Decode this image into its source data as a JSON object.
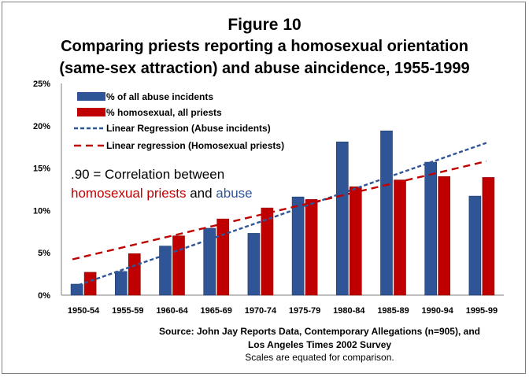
{
  "chart_data": {
    "type": "bar",
    "title": "Figure 10",
    "subtitle_line1": "Comparing priests reporting a homosexual orientation",
    "subtitle_line2": "(same-sex attraction) and abuse aincidence, 1955-1999",
    "categories": [
      "1950-54",
      "1955-59",
      "1960-64",
      "1965-69",
      "1970-74",
      "1975-79",
      "1980-84",
      "1985-89",
      "1990-94",
      "1995-99"
    ],
    "y_ticks": [
      "0%",
      "5%",
      "10%",
      "15%",
      "20%",
      "25%"
    ],
    "ylim": [
      0,
      25
    ],
    "grid": false,
    "legend_placement": "top-left",
    "series": [
      {
        "name": "% of all abuse incidents",
        "color": "#2f5597",
        "values": [
          1.3,
          2.8,
          5.8,
          7.9,
          7.3,
          11.6,
          18.1,
          19.4,
          15.7,
          11.7
        ]
      },
      {
        "name": "% homosexual, all priests",
        "color": "#c00000",
        "values": [
          2.7,
          4.9,
          7.0,
          9.0,
          10.3,
          11.3,
          12.8,
          13.6,
          14.0,
          13.9
        ]
      }
    ],
    "regressions": [
      {
        "name": "Linear Regression (Abuse incidents)",
        "color": "#2f5597",
        "start": 0.94,
        "end": 17.98
      },
      {
        "name": "Linear regression (Homosexual priests)",
        "color": "#c00000",
        "start": 4.23,
        "end": 15.81
      }
    ],
    "annotation": {
      "line1_value": ".90",
      "line1_text": " = Correlation between",
      "line2_red": "homosexual priests",
      "line2_mid": " and ",
      "line2_blue": "abuse"
    },
    "source_line1": "Source: John Jay Reports Data, Contemporary Allegations (n=905), and",
    "source_line2": "Los Angeles Times 2002 Survey",
    "source_note": "Scales are equated for comparison."
  }
}
